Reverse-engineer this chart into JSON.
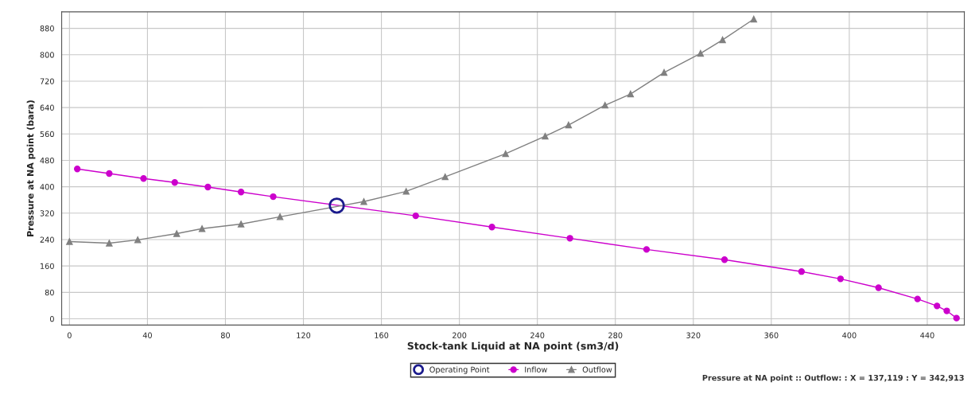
{
  "chart_data": {
    "type": "line",
    "xlabel": "Stock-tank Liquid at NA point (sm3/d)",
    "ylabel": "Pressure at NA point (bara)",
    "xlim": [
      -4,
      459
    ],
    "ylim": [
      -19,
      930
    ],
    "xticks": [
      0,
      40,
      80,
      120,
      160,
      200,
      240,
      280,
      320,
      360,
      400,
      440
    ],
    "yticks": [
      0,
      80,
      160,
      240,
      320,
      400,
      480,
      560,
      640,
      720,
      800,
      880
    ],
    "grid": true,
    "legend": "bottom",
    "series": [
      {
        "name": "Operating Point",
        "type": "scatter",
        "marker": "circle",
        "color": "#1a1a8c",
        "x": [
          137.119
        ],
        "values": [
          342.913
        ]
      },
      {
        "name": "Inflow",
        "marker": "circle",
        "color": "#cc00cc",
        "x": [
          4,
          20.4,
          38,
          54,
          71,
          88,
          104.5,
          177.6,
          216.7,
          256.7,
          296,
          336,
          375.5,
          395.5,
          415,
          435,
          445,
          450,
          455
        ],
        "values": [
          454,
          440,
          425,
          413,
          399,
          384,
          370,
          312,
          278,
          244,
          210,
          179,
          143,
          121,
          94,
          60,
          39,
          24,
          2
        ]
      },
      {
        "name": "Outflow",
        "marker": "triangle",
        "color": "#808080",
        "x": [
          0,
          20.4,
          35,
          55,
          68,
          88,
          108,
          151,
          172.7,
          192.7,
          223.7,
          244,
          256,
          274.7,
          287.8,
          305,
          323.7,
          335,
          351
        ],
        "values": [
          234,
          229,
          239,
          258,
          273,
          287,
          309,
          355,
          386,
          430,
          500,
          553,
          587,
          647,
          681,
          746,
          804,
          845,
          908
        ]
      }
    ],
    "annotations": [
      "Pressure at NA point :: Outflow: : X = 137,119 : Y = 342,913"
    ]
  }
}
